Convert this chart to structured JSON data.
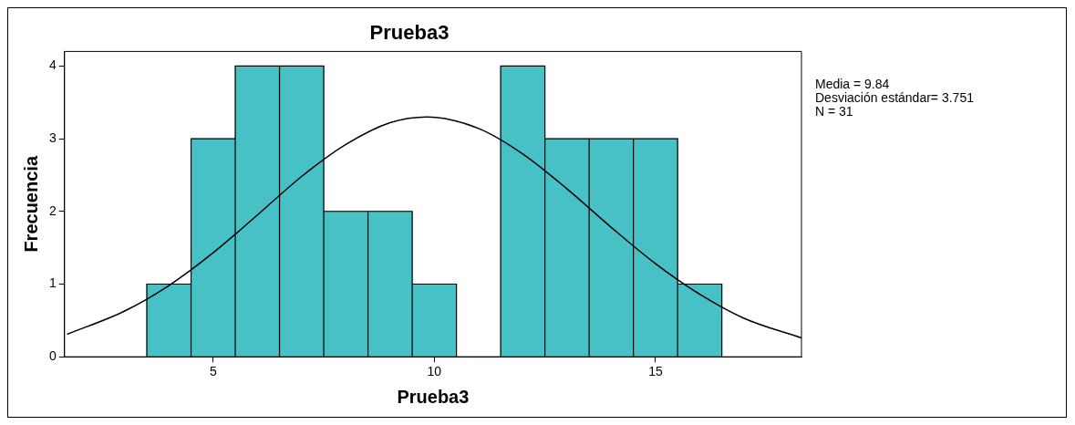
{
  "chart_data": {
    "type": "histogram",
    "title": "Prueba3",
    "xlabel": "Prueba3",
    "ylabel": "Frecuencia",
    "bins": [
      3.5,
      4.5,
      5.5,
      6.5,
      7.5,
      8.5,
      9.5,
      10.5,
      11.5,
      12.5,
      13.5,
      14.5,
      15.5,
      16.5
    ],
    "values": [
      1,
      3,
      4,
      4,
      2,
      2,
      1,
      0,
      4,
      3,
      3,
      3,
      1
    ],
    "color": "#48c1c6",
    "series": [
      {
        "type": "line",
        "color": "#000000",
        "x": [
          1.7,
          3,
          4,
          5,
          6,
          7,
          8,
          9,
          9.84,
          11,
          12,
          13,
          14,
          15,
          16,
          17,
          18.3
        ],
        "values": [
          0.31,
          0.63,
          0.98,
          1.43,
          1.95,
          2.48,
          2.92,
          3.22,
          3.3,
          3.14,
          2.79,
          2.31,
          1.78,
          1.28,
          0.86,
          0.53,
          0.26
        ]
      }
    ],
    "xlim": [
      1.64,
      18.3
    ],
    "xticks": [
      5,
      10,
      15
    ],
    "ylim": [
      0,
      4.2
    ],
    "yticks": [
      0,
      1,
      2,
      3,
      4
    ],
    "annotations": [
      "Media = 9.84",
      "Desviación estándar= 3.751",
      "N = 31"
    ],
    "grid": false,
    "legend": false,
    "marker": "none",
    "line_style": "solid"
  }
}
